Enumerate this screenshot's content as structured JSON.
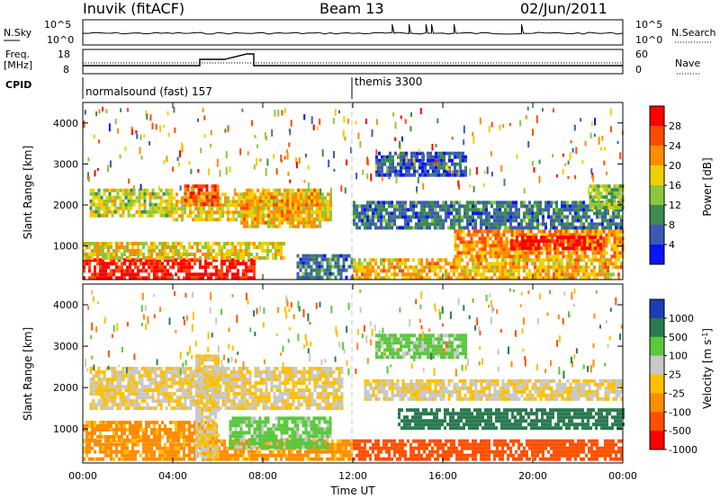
{
  "header": {
    "station": "Inuvik (fitACF)",
    "beam": "Beam 13",
    "date": "02/Jun/2011"
  },
  "noise_panel": {
    "left_label": "N.Sky",
    "left_ticks": [
      "10^5",
      "10^0"
    ],
    "right_ticks": [
      "10^5",
      "10^0"
    ],
    "right_label": "N.Search"
  },
  "freq_panel": {
    "left_label_1": "Freq.",
    "left_label_2": "[MHz]",
    "left_ticks": [
      "18",
      "8"
    ],
    "right_ticks": [
      "60",
      "0"
    ],
    "right_label": "Nave"
  },
  "cpid_panel": {
    "label": "CPID",
    "mode_1": "normalsound (fast) 157",
    "mode_2": "themis 3300"
  },
  "x_axis": {
    "label": "Time UT",
    "ticks": [
      "00:00",
      "04:00",
      "08:00",
      "12:00",
      "16:00",
      "20:00",
      "00:00"
    ]
  },
  "power_colorbar": {
    "label": "Power [dB]",
    "ticks": [
      "28",
      "24",
      "20",
      "16",
      "12",
      "8",
      "4"
    ],
    "colors": [
      "#ff0000",
      "#ff4a00",
      "#ff8c00",
      "#f0d000",
      "#8cc83a",
      "#3c8c50",
      "#3c5ab4",
      "#0a14ff"
    ]
  },
  "velocity_colorbar": {
    "label": "Velocity [m s-1]",
    "ticks": [
      "1000",
      "500",
      "100",
      "25",
      "-25",
      "-100",
      "-500",
      "-1000"
    ],
    "colors": [
      "#1e3cb4",
      "#2a7a50",
      "#5ac83c",
      "#c8c8c8",
      "#ffc000",
      "#ff8c00",
      "#ff5000",
      "#ff0000"
    ]
  },
  "chart_data": {
    "type": "heatmap",
    "x_range_hours": [
      0,
      24
    ],
    "y_label": "Slant Range [km]",
    "y_ticks": [
      1000,
      2000,
      3000,
      4000
    ],
    "y_range_km": [
      180,
      4500
    ],
    "mode_change_hour": 12,
    "noise_sky_step_hours": [
      13.8,
      14.6,
      15.2,
      15.5,
      16.4,
      19.5
    ],
    "frequency_segments": [
      {
        "start": 0.0,
        "end": 5.2,
        "level": "low"
      },
      {
        "start": 5.2,
        "end": 5.5,
        "level": "mid"
      },
      {
        "start": 6.0,
        "end": 6.3,
        "level": "mid"
      },
      {
        "start": 7.3,
        "end": 7.6,
        "level": "high"
      },
      {
        "start": 7.6,
        "end": 24.0,
        "level": "low"
      }
    ],
    "power_bands": [
      {
        "t0": 0.0,
        "t1": 7.6,
        "r0": 250,
        "r1": 700,
        "level": 28
      },
      {
        "t0": 0.0,
        "t1": 9.0,
        "r0": 700,
        "r1": 1100,
        "level": 16
      },
      {
        "t0": 0.3,
        "t1": 4.0,
        "r0": 1700,
        "r1": 2400,
        "level": 14
      },
      {
        "t0": 4.0,
        "t1": 11.0,
        "r0": 1600,
        "r1": 2300,
        "level": 16
      },
      {
        "t0": 4.5,
        "t1": 6.0,
        "r0": 2000,
        "r1": 2500,
        "level": 24
      },
      {
        "t0": 7.0,
        "t1": 10.5,
        "r0": 1500,
        "r1": 2400,
        "level": 18
      },
      {
        "t0": 9.5,
        "t1": 12.0,
        "r0": 250,
        "r1": 800,
        "level": 6
      },
      {
        "t0": 12.0,
        "t1": 24.0,
        "r0": 250,
        "r1": 700,
        "level": 18
      },
      {
        "t0": 12.0,
        "t1": 24.0,
        "r0": 1400,
        "r1": 2100,
        "level": 6
      },
      {
        "t0": 16.5,
        "t1": 24.0,
        "r0": 700,
        "r1": 1400,
        "level": 20
      },
      {
        "t0": 19.0,
        "t1": 23.0,
        "r0": 950,
        "r1": 1250,
        "level": 28
      },
      {
        "t0": 13.0,
        "t1": 17.0,
        "r0": 2700,
        "r1": 3300,
        "level": 4
      },
      {
        "t0": 22.5,
        "t1": 24.0,
        "r0": 1900,
        "r1": 2500,
        "level": 12
      }
    ],
    "velocity_bands": [
      {
        "t0": 0.0,
        "t1": 12.0,
        "r0": 250,
        "r1": 750,
        "level": -100
      },
      {
        "t0": 0.0,
        "t1": 6.0,
        "r0": 750,
        "r1": 1200,
        "level": -100
      },
      {
        "t0": 0.3,
        "t1": 11.5,
        "r0": 1500,
        "r1": 2500,
        "level": 0
      },
      {
        "t0": 5.0,
        "t1": 6.0,
        "r0": 300,
        "r1": 2800,
        "level": 0
      },
      {
        "t0": 6.5,
        "t1": 11.0,
        "r0": 600,
        "r1": 1300,
        "level": 100
      },
      {
        "t0": 12.0,
        "t1": 24.0,
        "r0": 250,
        "r1": 750,
        "level": -500
      },
      {
        "t0": 12.5,
        "t1": 24.0,
        "r0": 1700,
        "r1": 2200,
        "level": 0
      },
      {
        "t0": 14.0,
        "t1": 24.0,
        "r0": 1000,
        "r1": 1500,
        "level": 500
      },
      {
        "t0": 13.0,
        "t1": 17.0,
        "r0": 2700,
        "r1": 3300,
        "level": 100
      }
    ]
  }
}
